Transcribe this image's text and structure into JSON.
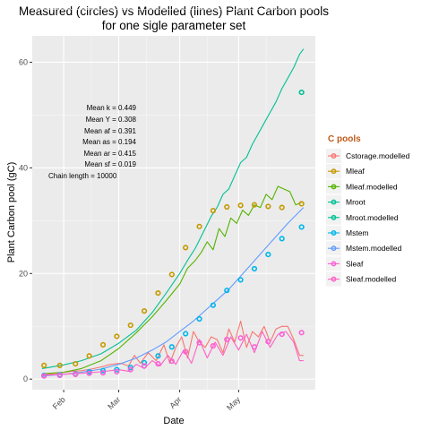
{
  "chart_data": {
    "type": "line",
    "title_line1": "Measured (circles) vs Modelled (lines) Plant Carbon pools",
    "title_line2": "for one sigle parameter set",
    "xlabel": "Date",
    "ylabel": "Plant Carbon pool (gC)",
    "x_ticks": [
      "Feb",
      "Mar",
      "Apr",
      "May"
    ],
    "y_ticks": [
      "0",
      "20",
      "40",
      "60"
    ],
    "ylim": [
      -2,
      65
    ],
    "legend_title": "C pools",
    "legend_position": "right",
    "annotations": [
      "Mean k =  0.449",
      "Mean Y =  0.308",
      "Mean af =  0.391",
      "Mean as =  0.194",
      "Mean ar =  0.415",
      "Mean sf =  0.019",
      "Chain length =  10000"
    ],
    "series": [
      {
        "name": "Cstorage.modelled",
        "color": "#F8766D",
        "kind": "line",
        "x": [
          "2013-01-21",
          "2013-01-26",
          "2013-01-31",
          "2013-02-05",
          "2013-02-10",
          "2013-02-15",
          "2013-02-20",
          "2013-02-25",
          "2013-03-02",
          "2013-03-06",
          "2013-03-09",
          "2013-03-12",
          "2013-03-16",
          "2013-03-20",
          "2013-03-24",
          "2013-03-27",
          "2013-03-30",
          "2013-04-02",
          "2013-04-05",
          "2013-04-08",
          "2013-04-11",
          "2013-04-14",
          "2013-04-17",
          "2013-04-20",
          "2013-04-23",
          "2013-04-26",
          "2013-04-29",
          "2013-05-02",
          "2013-05-05",
          "2013-05-08",
          "2013-05-11",
          "2013-05-14",
          "2013-05-17",
          "2013-05-20",
          "2013-05-23",
          "2013-05-26",
          "2013-05-29",
          "2013-06-01",
          "2013-06-03"
        ],
        "y": [
          0.8,
          1.0,
          1.2,
          1.5,
          1.6,
          1.9,
          2.3,
          2.8,
          3.0,
          2.5,
          4.5,
          3.0,
          5.0,
          3.5,
          6.5,
          3.0,
          6.0,
          8.0,
          4.0,
          9.0,
          7.0,
          6.0,
          8.0,
          7.5,
          5.0,
          9.5,
          7.0,
          11.0,
          6.0,
          9.0,
          8.0,
          10.0,
          7.0,
          9.5,
          10.0,
          10.0,
          7.5,
          4.5,
          4.5
        ]
      },
      {
        "name": "Mleaf",
        "color": "#C49A00",
        "kind": "points",
        "x": [
          "2013-01-22",
          "2013-01-30",
          "2013-02-07",
          "2013-02-14",
          "2013-02-21",
          "2013-02-28",
          "2013-03-07",
          "2013-03-14",
          "2013-03-21",
          "2013-03-28",
          "2013-04-04",
          "2013-04-11",
          "2013-04-18",
          "2013-04-25",
          "2013-05-02",
          "2013-05-09",
          "2013-05-16",
          "2013-05-23",
          "2013-06-02"
        ],
        "y": [
          2.6,
          2.6,
          2.9,
          4.4,
          6.5,
          8.1,
          10.2,
          12.9,
          16.3,
          19.8,
          24.9,
          28.9,
          31.9,
          32.6,
          32.9,
          33.0,
          32.7,
          32.5,
          33.2
        ]
      },
      {
        "name": "Mleaf.modelled",
        "color": "#53B400",
        "kind": "line",
        "x": [
          "2013-01-21",
          "2013-02-01",
          "2013-02-10",
          "2013-02-20",
          "2013-03-01",
          "2013-03-10",
          "2013-03-18",
          "2013-03-25",
          "2013-04-01",
          "2013-04-05",
          "2013-04-09",
          "2013-04-12",
          "2013-04-15",
          "2013-04-18",
          "2013-04-21",
          "2013-04-24",
          "2013-04-27",
          "2013-04-30",
          "2013-05-03",
          "2013-05-06",
          "2013-05-09",
          "2013-05-12",
          "2013-05-15",
          "2013-05-18",
          "2013-05-21",
          "2013-05-24",
          "2013-05-27",
          "2013-05-30",
          "2013-06-02"
        ],
        "y": [
          1.0,
          1.3,
          2.0,
          3.5,
          5.8,
          8.8,
          11.8,
          14.8,
          18.0,
          21.0,
          22.5,
          24.0,
          26.0,
          24.5,
          28.5,
          27.0,
          30.5,
          29.5,
          32.0,
          31.0,
          33.0,
          32.5,
          35.0,
          34.0,
          36.5,
          36.0,
          35.5,
          33.0,
          33.5
        ]
      },
      {
        "name": "Mroot",
        "color": "#00C094",
        "kind": "points",
        "x": [
          "2013-06-02"
        ],
        "y": [
          54.3
        ]
      },
      {
        "name": "Mroot.modelled",
        "color": "#00C094",
        "kind": "line",
        "x": [
          "2013-01-21",
          "2013-02-01",
          "2013-02-10",
          "2013-02-20",
          "2013-03-01",
          "2013-03-10",
          "2013-03-18",
          "2013-03-25",
          "2013-04-01",
          "2013-04-05",
          "2013-04-09",
          "2013-04-13",
          "2013-04-17",
          "2013-04-20",
          "2013-04-23",
          "2013-04-26",
          "2013-04-29",
          "2013-05-02",
          "2013-05-05",
          "2013-05-08",
          "2013-05-11",
          "2013-05-14",
          "2013-05-17",
          "2013-05-20",
          "2013-05-23",
          "2013-05-26",
          "2013-05-29",
          "2013-06-01",
          "2013-06-03"
        ],
        "y": [
          2.0,
          2.7,
          3.5,
          4.8,
          6.8,
          9.3,
          12.6,
          16.2,
          20.0,
          22.5,
          24.8,
          27.8,
          30.8,
          32.5,
          35.0,
          36.0,
          38.5,
          41.0,
          42.0,
          44.5,
          46.5,
          48.5,
          50.5,
          52.5,
          55.0,
          57.0,
          59.0,
          61.5,
          62.5
        ]
      },
      {
        "name": "Mstem",
        "color": "#00B6EB",
        "kind": "points",
        "x": [
          "2013-01-22",
          "2013-01-30",
          "2013-02-07",
          "2013-02-14",
          "2013-02-21",
          "2013-02-28",
          "2013-03-07",
          "2013-03-14",
          "2013-03-21",
          "2013-03-28",
          "2013-04-04",
          "2013-04-11",
          "2013-04-18",
          "2013-04-25",
          "2013-05-02",
          "2013-05-09",
          "2013-05-16",
          "2013-05-23",
          "2013-06-02"
        ],
        "y": [
          0.7,
          0.8,
          1.0,
          1.4,
          1.6,
          1.8,
          2.2,
          3.1,
          4.4,
          6.1,
          8.6,
          11.4,
          14.0,
          16.8,
          18.8,
          20.9,
          23.6,
          26.6,
          28.8
        ]
      },
      {
        "name": "Mstem.modelled",
        "color": "#619CFF",
        "kind": "line",
        "x": [
          "2013-01-21",
          "2013-02-01",
          "2013-02-10",
          "2013-02-20",
          "2013-03-01",
          "2013-03-10",
          "2013-03-18",
          "2013-03-25",
          "2013-04-01",
          "2013-04-08",
          "2013-04-14",
          "2013-04-20",
          "2013-04-26",
          "2013-05-02",
          "2013-05-08",
          "2013-05-14",
          "2013-05-20",
          "2013-05-26",
          "2013-06-03"
        ],
        "y": [
          0.6,
          0.9,
          1.3,
          1.9,
          2.8,
          4.0,
          5.5,
          7.0,
          9.0,
          11.0,
          13.0,
          15.0,
          17.0,
          19.5,
          22.0,
          24.5,
          27.0,
          29.5,
          32.5
        ]
      },
      {
        "name": "Sleaf",
        "color": "#FB61D7",
        "kind": "points",
        "x": [
          "2013-01-22",
          "2013-01-30",
          "2013-02-07",
          "2013-02-14",
          "2013-02-21",
          "2013-02-28",
          "2013-03-07",
          "2013-03-14",
          "2013-03-21",
          "2013-03-28",
          "2013-04-04",
          "2013-04-11",
          "2013-04-18",
          "2013-04-25",
          "2013-05-02",
          "2013-05-09",
          "2013-05-16",
          "2013-05-23",
          "2013-06-02"
        ],
        "y": [
          0.6,
          0.7,
          0.9,
          1.1,
          1.2,
          1.4,
          1.8,
          2.5,
          2.9,
          3.4,
          5.2,
          6.9,
          6.3,
          7.5,
          7.8,
          6.1,
          7.1,
          8.5,
          8.8
        ]
      },
      {
        "name": "Sleaf.modelled",
        "color": "#FF61C3",
        "kind": "line",
        "x": [
          "2013-01-21",
          "2013-01-31",
          "2013-02-10",
          "2013-02-20",
          "2013-03-01",
          "2013-03-06",
          "2013-03-10",
          "2013-03-14",
          "2013-03-18",
          "2013-03-22",
          "2013-03-26",
          "2013-03-30",
          "2013-04-03",
          "2013-04-07",
          "2013-04-11",
          "2013-04-15",
          "2013-04-19",
          "2013-04-23",
          "2013-04-27",
          "2013-05-01",
          "2013-05-05",
          "2013-05-09",
          "2013-05-13",
          "2013-05-17",
          "2013-05-21",
          "2013-05-25",
          "2013-05-29",
          "2013-06-01",
          "2013-06-03"
        ],
        "y": [
          0.7,
          0.9,
          1.1,
          1.4,
          1.8,
          1.5,
          2.8,
          2.0,
          3.5,
          2.5,
          4.5,
          2.8,
          5.5,
          3.0,
          7.5,
          4.0,
          7.0,
          4.5,
          8.0,
          5.5,
          8.5,
          5.0,
          9.0,
          6.0,
          8.5,
          9.0,
          7.0,
          3.5,
          3.5
        ]
      }
    ]
  }
}
